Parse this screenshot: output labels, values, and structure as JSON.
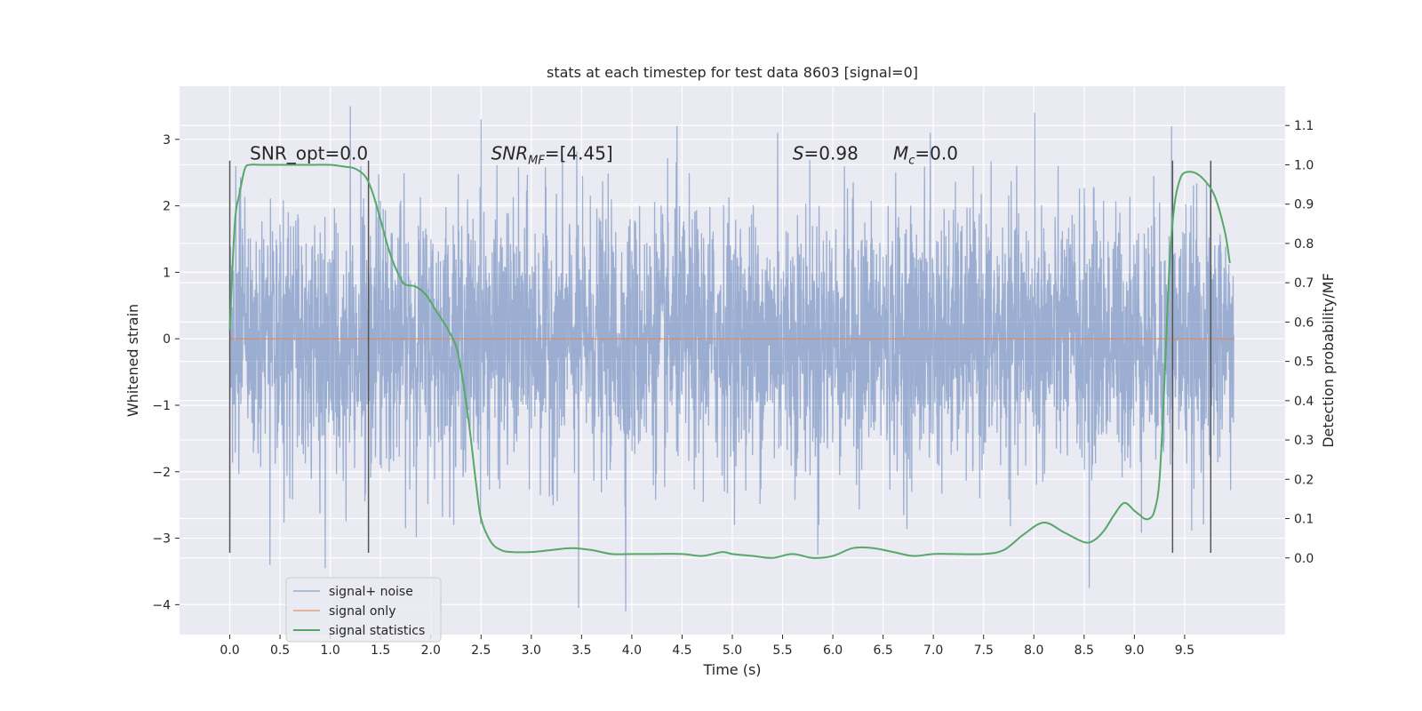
{
  "chart_data": {
    "type": "line",
    "title": "stats at each timestep for test data 8603 [signal=0]",
    "xlabel": "Time (s)",
    "ylabel": "Whitened strain",
    "y2label": "Detection probability/MF",
    "xlim": [
      -0.5,
      10.5
    ],
    "ylim": [
      -4.45,
      3.8
    ],
    "y2lim": [
      -0.195,
      1.2
    ],
    "x_ticks": [
      0.0,
      0.5,
      1.0,
      1.5,
      2.0,
      2.5,
      3.0,
      3.5,
      4.0,
      4.5,
      5.0,
      5.5,
      6.0,
      6.5,
      7.0,
      7.5,
      8.0,
      8.5,
      9.0,
      9.5
    ],
    "x_tick_labels": [
      "0.0",
      "0.5",
      "1.0",
      "1.5",
      "2.0",
      "2.5",
      "3.0",
      "3.5",
      "4.0",
      "4.5",
      "5.0",
      "5.5",
      "6.0",
      "6.5",
      "7.0",
      "7.5",
      "8.0",
      "8.5",
      "9.0",
      "9.5"
    ],
    "y_ticks": [
      -4,
      -3,
      -2,
      -1,
      0,
      1,
      2,
      3
    ],
    "y_tick_labels": [
      "−4",
      "−3",
      "−2",
      "−1",
      "0",
      "1",
      "2",
      "3"
    ],
    "y2_ticks": [
      0.0,
      0.1,
      0.2,
      0.3,
      0.4,
      0.5,
      0.6,
      0.7,
      0.8,
      0.9,
      1.0,
      1.1
    ],
    "y2_tick_labels": [
      "0.0",
      "0.1",
      "0.2",
      "0.3",
      "0.4",
      "0.5",
      "0.6",
      "0.7",
      "0.8",
      "0.9",
      "1.0",
      "1.1"
    ],
    "grid": true,
    "legend_position": "lower-left",
    "annotations": [
      {
        "prefix": "SNR_opt=0.0",
        "x": 0.2,
        "y": 2.7
      },
      {
        "var": "SNR",
        "sub": "MF",
        "suffix": "=[4.45]",
        "x": 2.6,
        "y": 2.7
      },
      {
        "var": "S",
        "suffix": "=0.98",
        "x": 5.6,
        "y": 2.7
      },
      {
        "var": "M",
        "sub": "c",
        "suffix": "=0.0",
        "x": 6.6,
        "y": 2.7
      }
    ],
    "vertical_markers": [
      0.0,
      1.38,
      9.38,
      9.76
    ],
    "marker_range_y": [
      -3.22,
      2.68
    ],
    "series": [
      {
        "name": "signal+ noise",
        "color": "#4c72b0",
        "opacity": 0.5,
        "x_range": [
          0.0,
          9.99
        ],
        "envelope_std": 1.0,
        "upper_peaks": [
          {
            "x": 1.2,
            "y": 3.5
          },
          {
            "x": 2.5,
            "y": 3.3
          },
          {
            "x": 8.01,
            "y": 3.4
          },
          {
            "x": 9.37,
            "y": 3.2
          },
          {
            "x": 4.45,
            "y": 3.2
          },
          {
            "x": 5.45,
            "y": 3.1
          },
          {
            "x": 6.97,
            "y": 3.1
          }
        ],
        "lower_peaks": [
          {
            "x": 3.47,
            "y": -4.05
          },
          {
            "x": 3.94,
            "y": -4.1
          },
          {
            "x": 8.55,
            "y": -3.75
          },
          {
            "x": 0.95,
            "y": -3.45
          },
          {
            "x": 0.4,
            "y": -3.4
          },
          {
            "x": 5.85,
            "y": -3.25
          }
        ]
      },
      {
        "name": "signal only",
        "color": "#dd8452",
        "opacity": 0.7,
        "x": [
          0.0,
          9.99
        ],
        "y": [
          0.0,
          0.0
        ]
      },
      {
        "name": "signal statistics",
        "color": "#55a868",
        "axis": "right",
        "x": [
          0.0,
          0.05,
          0.1,
          0.15,
          0.2,
          0.3,
          0.5,
          0.8,
          1.0,
          1.15,
          1.25,
          1.35,
          1.42,
          1.5,
          1.6,
          1.7,
          1.75,
          1.85,
          1.95,
          2.05,
          2.15,
          2.25,
          2.3,
          2.35,
          2.4,
          2.45,
          2.5,
          2.6,
          2.7,
          2.8,
          3.0,
          3.2,
          3.4,
          3.6,
          3.8,
          4.0,
          4.2,
          4.5,
          4.7,
          4.9,
          5.0,
          5.2,
          5.4,
          5.6,
          5.8,
          6.0,
          6.2,
          6.4,
          6.6,
          6.8,
          7.0,
          7.2,
          7.5,
          7.7,
          7.9,
          8.1,
          8.3,
          8.5,
          8.6,
          8.7,
          8.8,
          8.9,
          9.0,
          9.05,
          9.1,
          9.15,
          9.2,
          9.25,
          9.3,
          9.35,
          9.4,
          9.45,
          9.5,
          9.6,
          9.7,
          9.8,
          9.9,
          9.95
        ],
        "y": [
          0.58,
          0.85,
          0.93,
          0.99,
          1.0,
          1.0,
          1.0,
          1.0,
          1.0,
          0.995,
          0.99,
          0.97,
          0.93,
          0.86,
          0.77,
          0.71,
          0.695,
          0.69,
          0.67,
          0.63,
          0.59,
          0.54,
          0.48,
          0.4,
          0.3,
          0.19,
          0.1,
          0.04,
          0.02,
          0.015,
          0.015,
          0.02,
          0.025,
          0.02,
          0.01,
          0.01,
          0.01,
          0.01,
          0.005,
          0.015,
          0.01,
          0.005,
          0.0,
          0.01,
          0.0,
          0.005,
          0.025,
          0.025,
          0.015,
          0.005,
          0.01,
          0.01,
          0.01,
          0.02,
          0.06,
          0.09,
          0.065,
          0.04,
          0.045,
          0.07,
          0.11,
          0.14,
          0.12,
          0.11,
          0.1,
          0.1,
          0.12,
          0.2,
          0.45,
          0.75,
          0.9,
          0.96,
          0.98,
          0.98,
          0.96,
          0.92,
          0.83,
          0.75
        ]
      }
    ]
  }
}
